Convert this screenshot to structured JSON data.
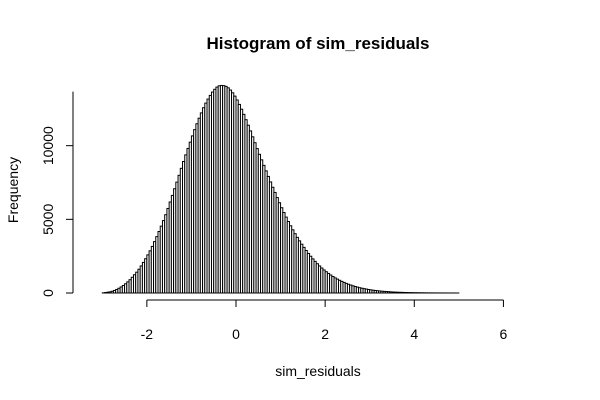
{
  "chart_data": {
    "type": "bar",
    "title": "Histogram of sim_residuals",
    "xlabel": "sim_residuals",
    "ylabel": "Frequency",
    "xlim": [
      -3.5,
      7.0
    ],
    "ylim": [
      0,
      15000
    ],
    "bin_width": 0.05,
    "x_ticks": [
      -2,
      0,
      2,
      4,
      6
    ],
    "x_tick_labels": [
      "-2",
      "0",
      "2",
      "4",
      "6"
    ],
    "y_ticks": [
      0,
      5000,
      10000
    ],
    "y_tick_labels": [
      "0",
      "5000",
      "10000"
    ],
    "grid": false,
    "legend": "none",
    "bin_edges_min": -3.0,
    "bin_edges_max": 6.9,
    "bins": [
      [
        -3.0,
        0
      ],
      [
        -2.9,
        40
      ],
      [
        -2.8,
        90
      ],
      [
        -2.7,
        200
      ],
      [
        -2.6,
        360
      ],
      [
        -2.5,
        560
      ],
      [
        -2.4,
        820
      ],
      [
        -2.3,
        1150
      ],
      [
        -2.2,
        1500
      ],
      [
        -2.1,
        1950
      ],
      [
        -2.0,
        2450
      ],
      [
        -1.9,
        3000
      ],
      [
        -1.8,
        3650
      ],
      [
        -1.7,
        4350
      ],
      [
        -1.6,
        5100
      ],
      [
        -1.5,
        5950
      ],
      [
        -1.4,
        6850
      ],
      [
        -1.3,
        7750
      ],
      [
        -1.2,
        8700
      ],
      [
        -1.1,
        9600
      ],
      [
        -1.0,
        10450
      ],
      [
        -0.9,
        11300
      ],
      [
        -0.8,
        12050
      ],
      [
        -0.7,
        12750
      ],
      [
        -0.6,
        13300
      ],
      [
        -0.5,
        13750
      ],
      [
        -0.4,
        14050
      ],
      [
        -0.3,
        14100
      ],
      [
        -0.2,
        14000
      ],
      [
        -0.1,
        13700
      ],
      [
        0.0,
        13250
      ],
      [
        0.1,
        12650
      ],
      [
        0.2,
        11950
      ],
      [
        0.3,
        11200
      ],
      [
        0.4,
        10400
      ],
      [
        0.5,
        9600
      ],
      [
        0.6,
        8850
      ],
      [
        0.7,
        8100
      ],
      [
        0.8,
        7350
      ],
      [
        0.9,
        6650
      ],
      [
        1.0,
        5950
      ],
      [
        1.1,
        5300
      ],
      [
        1.2,
        4700
      ],
      [
        1.3,
        4150
      ],
      [
        1.4,
        3650
      ],
      [
        1.5,
        3200
      ],
      [
        1.6,
        2780
      ],
      [
        1.7,
        2400
      ],
      [
        1.8,
        2060
      ],
      [
        1.9,
        1760
      ],
      [
        2.0,
        1500
      ],
      [
        2.1,
        1270
      ],
      [
        2.2,
        1070
      ],
      [
        2.3,
        900
      ],
      [
        2.4,
        750
      ],
      [
        2.5,
        620
      ],
      [
        2.6,
        510
      ],
      [
        2.7,
        420
      ],
      [
        2.8,
        340
      ],
      [
        2.9,
        280
      ],
      [
        3.0,
        225
      ],
      [
        3.1,
        180
      ],
      [
        3.2,
        145
      ],
      [
        3.3,
        115
      ],
      [
        3.4,
        92
      ],
      [
        3.5,
        72
      ],
      [
        3.6,
        56
      ],
      [
        3.7,
        44
      ],
      [
        3.8,
        34
      ],
      [
        3.9,
        26
      ],
      [
        4.0,
        20
      ],
      [
        4.1,
        15
      ],
      [
        4.2,
        11
      ],
      [
        4.3,
        8
      ],
      [
        4.4,
        6
      ],
      [
        4.5,
        4
      ],
      [
        4.6,
        3
      ],
      [
        4.7,
        2
      ],
      [
        4.8,
        1
      ],
      [
        4.9,
        1
      ],
      [
        5.0,
        0
      ]
    ]
  }
}
